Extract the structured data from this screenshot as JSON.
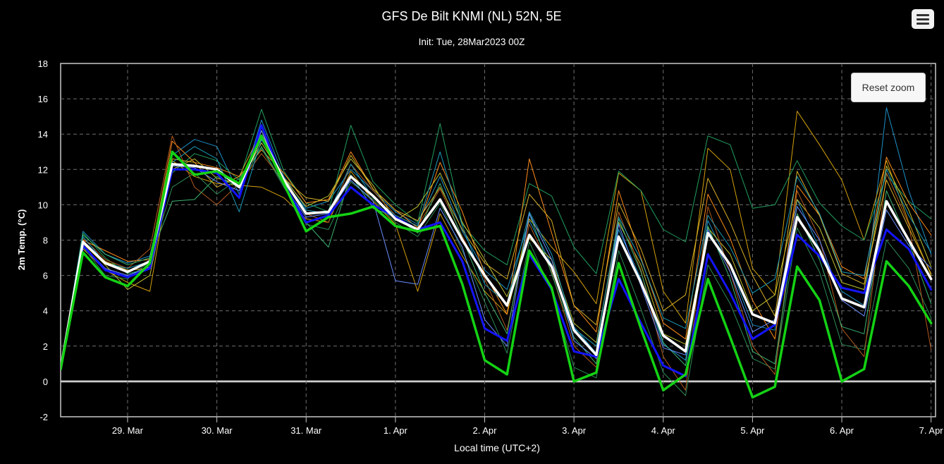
{
  "chart_data": {
    "type": "line",
    "title": "GFS De Bilt KNMI (NL) 52N, 5E",
    "subtitle": "Init: Tue, 28Mar2023 00Z",
    "xlabel": "Local time (UTC+2)",
    "ylabel": "2m Temp. (°C)",
    "ylim": [
      -2,
      18
    ],
    "yticks": [
      -2,
      0,
      2,
      4,
      6,
      8,
      10,
      12,
      14,
      16,
      18
    ],
    "xtick_labels": [
      "29. Mar",
      "30. Mar",
      "31. Mar",
      "1. Apr",
      "2. Apr",
      "3. Apr",
      "4. Apr",
      "5. Apr",
      "6. Apr",
      "7. Apr"
    ],
    "x_unit": "6-hour steps from 28 Mar 02:00 local (step 0 = 28 Mar 02:00)",
    "xlim": [
      0,
      39.2
    ],
    "grid": true,
    "legend": "none",
    "series": [
      {
        "color": "#ffffff",
        "width": 3.5,
        "values": [
          0.7,
          7.9,
          6.7,
          6.2,
          6.8,
          12.3,
          12.2,
          12.0,
          11.0,
          13.9,
          11.4,
          9.5,
          9.6,
          11.6,
          10.5,
          9.2,
          8.6,
          10.3,
          8.0,
          6.0,
          4.3,
          8.3,
          6.5,
          2.9,
          1.5,
          8.2,
          5.6,
          2.6,
          1.7,
          8.4,
          6.6,
          3.8,
          3.3,
          9.3,
          7.4,
          4.7,
          4.2,
          10.2,
          8.0,
          5.8
        ]
      },
      {
        "color": "#14d214",
        "width": 3.5,
        "values": [
          0.7,
          7.3,
          5.9,
          5.4,
          6.7,
          13.0,
          11.7,
          11.9,
          11.2,
          13.9,
          11.2,
          8.5,
          9.3,
          9.5,
          9.9,
          8.8,
          8.5,
          8.8,
          5.5,
          1.2,
          0.4,
          7.4,
          5.3,
          0.0,
          0.5,
          6.7,
          3.0,
          -0.5,
          0.4,
          5.8,
          2.5,
          -0.9,
          -0.3,
          6.5,
          4.6,
          0.0,
          0.7,
          6.8,
          5.4,
          3.3
        ]
      },
      {
        "color": "#1414ff",
        "width": 3,
        "values": [
          0.7,
          7.7,
          6.3,
          5.9,
          6.4,
          12.0,
          12.0,
          11.8,
          10.4,
          14.5,
          11.2,
          9.0,
          9.4,
          11.0,
          10.0,
          9.3,
          8.6,
          9.0,
          6.8,
          3.0,
          2.3,
          7.2,
          5.2,
          1.7,
          1.4,
          5.8,
          3.3,
          0.9,
          0.3,
          7.2,
          5.0,
          2.4,
          3.2,
          8.3,
          7.1,
          5.3,
          5.0,
          8.6,
          7.5,
          5.2
        ]
      },
      {
        "color": "#1e90c8",
        "width": 1,
        "values": [
          0.7,
          8.5,
          7.2,
          6.7,
          7.1,
          12.8,
          13.7,
          13.3,
          10.6,
          14.8,
          11.6,
          9.8,
          10.2,
          12.0,
          10.8,
          9.6,
          8.9,
          11.6,
          8.5,
          6.3,
          5.2,
          9.1,
          6.6,
          3.1,
          1.6,
          8.6,
          5.8,
          2.1,
          1.2,
          9.1,
          6.5,
          3.2,
          2.9,
          10.3,
          7.5,
          5.1,
          4.3,
          15.5,
          10.8,
          7.2
        ]
      },
      {
        "color": "#d4a00a",
        "width": 1,
        "values": [
          0.7,
          7.5,
          6.3,
          5.6,
          5.1,
          12.5,
          11.6,
          11.2,
          11.1,
          11.0,
          10.4,
          9.2,
          9.0,
          11.9,
          10.2,
          8.9,
          5.1,
          9.5,
          7.1,
          5.1,
          3.8,
          9.2,
          7.6,
          6.2,
          4.4,
          11.8,
          10.8,
          5.1,
          3.3,
          13.2,
          12.0,
          6.4,
          4.9,
          15.3,
          13.4,
          11.4,
          8.0,
          12.5,
          9.0,
          6.0
        ]
      },
      {
        "color": "#20a060",
        "width": 1,
        "values": [
          0.7,
          8.4,
          7.0,
          6.1,
          6.4,
          11.8,
          12.9,
          12.5,
          11.4,
          15.4,
          11.9,
          10.1,
          9.6,
          14.5,
          11.3,
          10.0,
          9.0,
          14.6,
          8.9,
          7.4,
          6.6,
          11.2,
          10.5,
          7.6,
          6.1,
          11.9,
          10.8,
          8.6,
          7.9,
          13.9,
          13.4,
          9.8,
          10.0,
          12.5,
          10.1,
          8.8,
          8.0,
          11.7,
          10.2,
          9.2
        ]
      },
      {
        "color": "#ff8c1a",
        "width": 1,
        "values": [
          0.7,
          8.0,
          7.4,
          6.8,
          6.9,
          13.6,
          12.4,
          12.1,
          11.6,
          13.1,
          11.8,
          10.1,
          10.3,
          13.0,
          10.9,
          9.7,
          8.7,
          12.4,
          9.6,
          6.1,
          3.8,
          12.6,
          8.4,
          4.3,
          2.8,
          10.8,
          7.0,
          3.3,
          2.4,
          10.6,
          8.1,
          4.6,
          2.4,
          11.1,
          9.4,
          6.5,
          5.8,
          12.7,
          10.1,
          8.3
        ]
      },
      {
        "color": "#c0c030",
        "width": 1,
        "values": [
          0.7,
          7.8,
          6.6,
          5.2,
          6.0,
          12.0,
          12.6,
          11.5,
          11.2,
          13.5,
          11.5,
          9.9,
          10.5,
          12.6,
          11.1,
          9.1,
          9.9,
          11.8,
          9.0,
          6.9,
          4.8,
          8.1,
          6.9,
          3.3,
          2.2,
          9.0,
          6.6,
          2.7,
          2.1,
          8.7,
          7.2,
          4.0,
          4.9,
          10.3,
          8.7,
          5.6,
          5.2,
          12.2,
          9.7,
          6.5
        ]
      },
      {
        "color": "#2e8b57",
        "width": 1,
        "values": [
          0.7,
          7.6,
          6.0,
          5.8,
          6.8,
          11.0,
          11.8,
          10.6,
          11.5,
          13.2,
          11.0,
          8.9,
          8.6,
          11.3,
          10.3,
          9.0,
          8.2,
          10.1,
          7.4,
          4.5,
          1.6,
          7.9,
          5.1,
          0.8,
          0.2,
          7.4,
          4.1,
          0.5,
          -0.8,
          6.6,
          4.4,
          1.3,
          0.7,
          8.7,
          6.2,
          2.1,
          1.8,
          8.0,
          6.4,
          3.6
        ]
      },
      {
        "color": "#b45a1e",
        "width": 1,
        "values": [
          0.7,
          8.1,
          6.9,
          6.4,
          7.5,
          13.9,
          11.0,
          10.0,
          11.2,
          12.9,
          11.3,
          9.5,
          9.0,
          12.3,
          10.8,
          9.4,
          8.8,
          10.9,
          8.2,
          5.8,
          2.9,
          8.9,
          6.2,
          2.0,
          0.8,
          9.6,
          6.3,
          1.4,
          -0.5,
          9.9,
          6.2,
          2.0,
          0.4,
          10.8,
          8.1,
          3.0,
          1.4,
          11.8,
          8.9,
          1.8
        ]
      },
      {
        "color": "#3cb371",
        "width": 1,
        "values": [
          0.7,
          8.3,
          7.2,
          6.6,
          7.0,
          10.2,
          10.3,
          11.6,
          11.0,
          13.3,
          11.1,
          9.0,
          7.6,
          11.7,
          9.8,
          9.3,
          8.4,
          11.2,
          8.1,
          5.0,
          2.7,
          9.5,
          6.1,
          2.5,
          1.0,
          9.2,
          6.2,
          2.2,
          0.9,
          8.8,
          5.8,
          1.7,
          1.0,
          9.5,
          6.9,
          3.1,
          2.7,
          10.8,
          7.9,
          4.4
        ]
      },
      {
        "color": "#d8b028",
        "width": 1,
        "values": [
          0.7,
          7.9,
          6.8,
          6.3,
          6.4,
          12.6,
          12.4,
          11.0,
          11.6,
          14.2,
          11.5,
          10.4,
          10.2,
          12.8,
          10.9,
          9.7,
          9.1,
          11.0,
          8.6,
          6.7,
          5.8,
          10.6,
          9.1,
          4.3,
          3.2,
          10.1,
          7.5,
          4.0,
          4.9,
          11.5,
          9.0,
          6.0,
          3.7,
          11.9,
          9.4,
          6.1,
          5.5,
          11.4,
          8.7,
          6.1
        ]
      },
      {
        "color": "#1a9ab8",
        "width": 1,
        "values": [
          0.7,
          8.2,
          6.7,
          6.4,
          6.8,
          12.4,
          13.3,
          12.6,
          9.6,
          13.7,
          11.4,
          9.7,
          9.5,
          12.3,
          10.4,
          9.4,
          8.8,
          13.0,
          8.8,
          5.5,
          4.4,
          9.6,
          7.2,
          3.0,
          2.0,
          9.3,
          6.9,
          3.6,
          3.0,
          9.4,
          7.6,
          5.0,
          5.8,
          11.6,
          9.5,
          6.2,
          6.0,
          12.0,
          9.4,
          7.3
        ]
      },
      {
        "color": "#6a8cff",
        "width": 1,
        "values": [
          0.7,
          7.7,
          6.4,
          6.0,
          6.5,
          12.2,
          12.1,
          11.3,
          10.8,
          14.2,
          11.1,
          9.3,
          9.5,
          11.4,
          10.2,
          5.7,
          5.5,
          9.8,
          7.6,
          3.5,
          2.0,
          9.5,
          6.9,
          2.3,
          1.3,
          8.9,
          5.4,
          1.9,
          1.5,
          8.6,
          6.2,
          2.8,
          3.5,
          9.9,
          8.0,
          4.6,
          3.7,
          9.7,
          7.7,
          6.4
        ]
      }
    ]
  },
  "ui": {
    "reset_zoom_label": "Reset zoom",
    "menu_icon": "hamburger-menu-icon"
  }
}
